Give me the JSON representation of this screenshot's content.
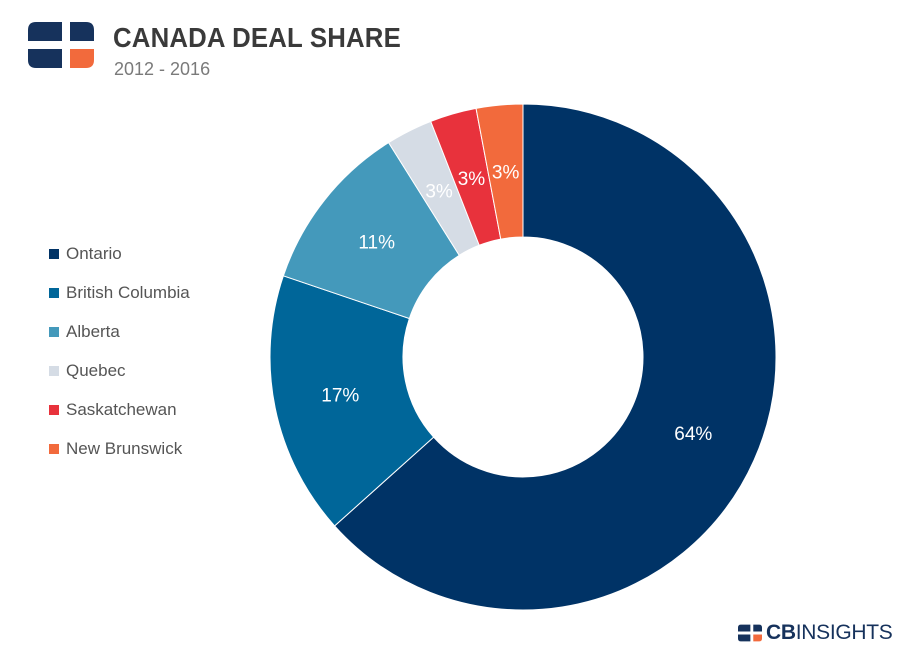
{
  "header": {
    "title": "CANADA DEAL SHARE",
    "subtitle": "2012 - 2016"
  },
  "brand": {
    "bold": "CB",
    "rest": "INSIGHTS"
  },
  "colors": {
    "Ontario": "#003366",
    "British Columbia": "#006699",
    "Alberta": "#4499bb",
    "Quebec": "#d5dce5",
    "Saskatchewan": "#e8323c",
    "New Brunswick": "#f26a3c",
    "logo_navy": "#16325c",
    "logo_orange": "#f26a3c"
  },
  "chart_data": {
    "type": "pie",
    "donut": true,
    "title": "CANADA DEAL SHARE",
    "subtitle": "2012 - 2016",
    "legend_position": "left",
    "categories": [
      "Ontario",
      "British Columbia",
      "Alberta",
      "Quebec",
      "Saskatchewan",
      "New Brunswick"
    ],
    "values": [
      64,
      17,
      11,
      3,
      3,
      3
    ],
    "labels": [
      "64%",
      "17%",
      "11%",
      "3%",
      "3%",
      "3%"
    ]
  }
}
